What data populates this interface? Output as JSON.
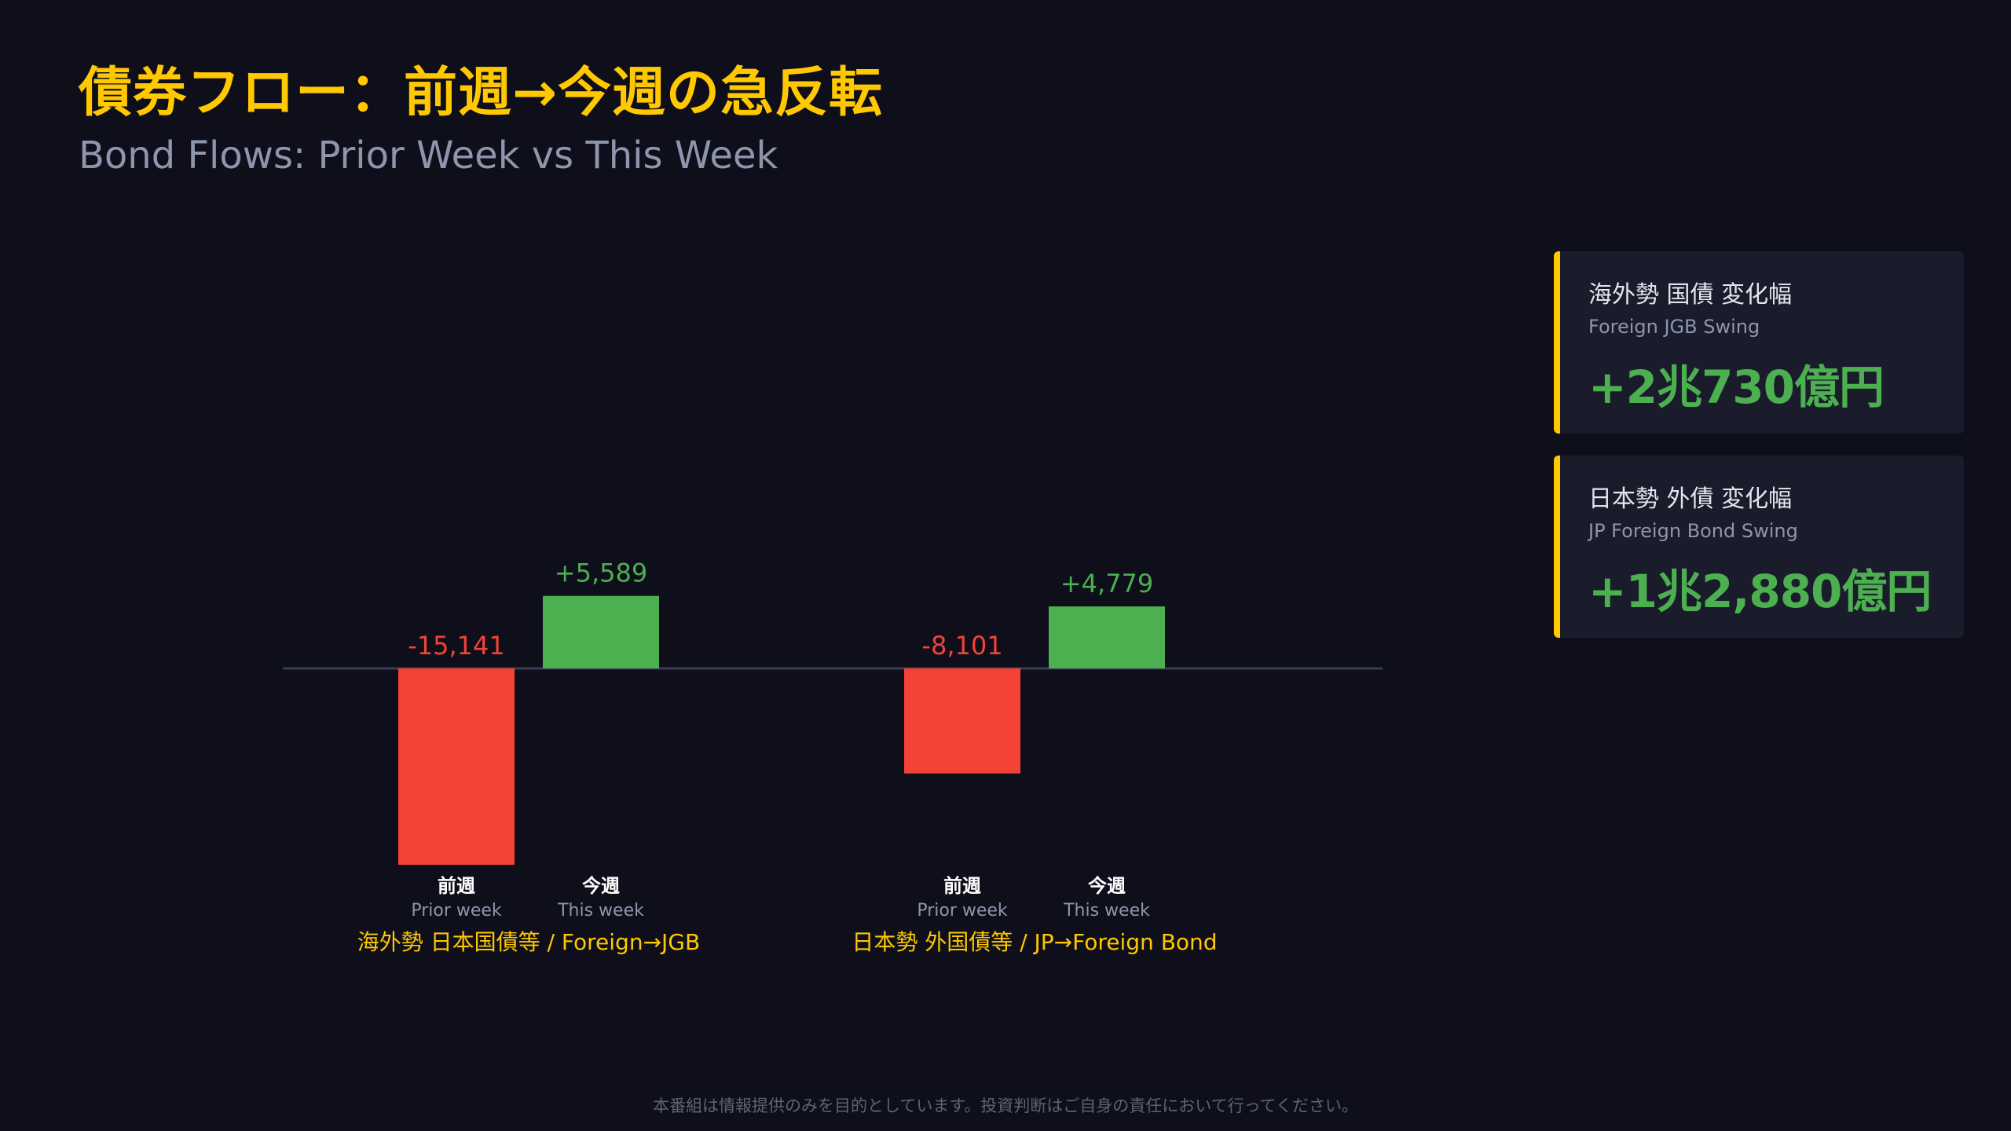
{
  "header": {
    "title": "債券フロー：前週→今週の急反転",
    "subtitle": "Bond Flows: Prior Week vs This Week"
  },
  "colors": {
    "background": "#0e0f1a",
    "accent": "#ffc800",
    "negative": "#f44336",
    "positive": "#4caf50",
    "card_bg": "#1a1c2c",
    "baseline": "#3a3d55"
  },
  "chart_data": {
    "type": "bar",
    "baseline": 0,
    "groups": [
      {
        "name": "海外勢 日本国債等 / Foreign→JGB",
        "bars": [
          {
            "label_jp": "前週",
            "label_en": "Prior week",
            "value": -15141,
            "value_label": "-15,141"
          },
          {
            "label_jp": "今週",
            "label_en": "This week",
            "value": 5589,
            "value_label": "+5,589"
          }
        ]
      },
      {
        "name": "日本勢 外国債等 / JP→Foreign Bond",
        "bars": [
          {
            "label_jp": "前週",
            "label_en": "Prior week",
            "value": -8101,
            "value_label": "-8,101"
          },
          {
            "label_jp": "今週",
            "label_en": "This week",
            "value": 4779,
            "value_label": "+4,779"
          }
        ]
      }
    ]
  },
  "cards": [
    {
      "title": "海外勢 国債 変化幅",
      "subtitle": "Foreign JGB Swing",
      "value": "+2兆730億円"
    },
    {
      "title": "日本勢 外債 変化幅",
      "subtitle": "JP Foreign Bond Swing",
      "value": "+1兆2,880億円"
    }
  ],
  "footer": {
    "disclaimer": "本番組は情報提供のみを目的としています。投資判断はご自身の責任において行ってください。"
  }
}
